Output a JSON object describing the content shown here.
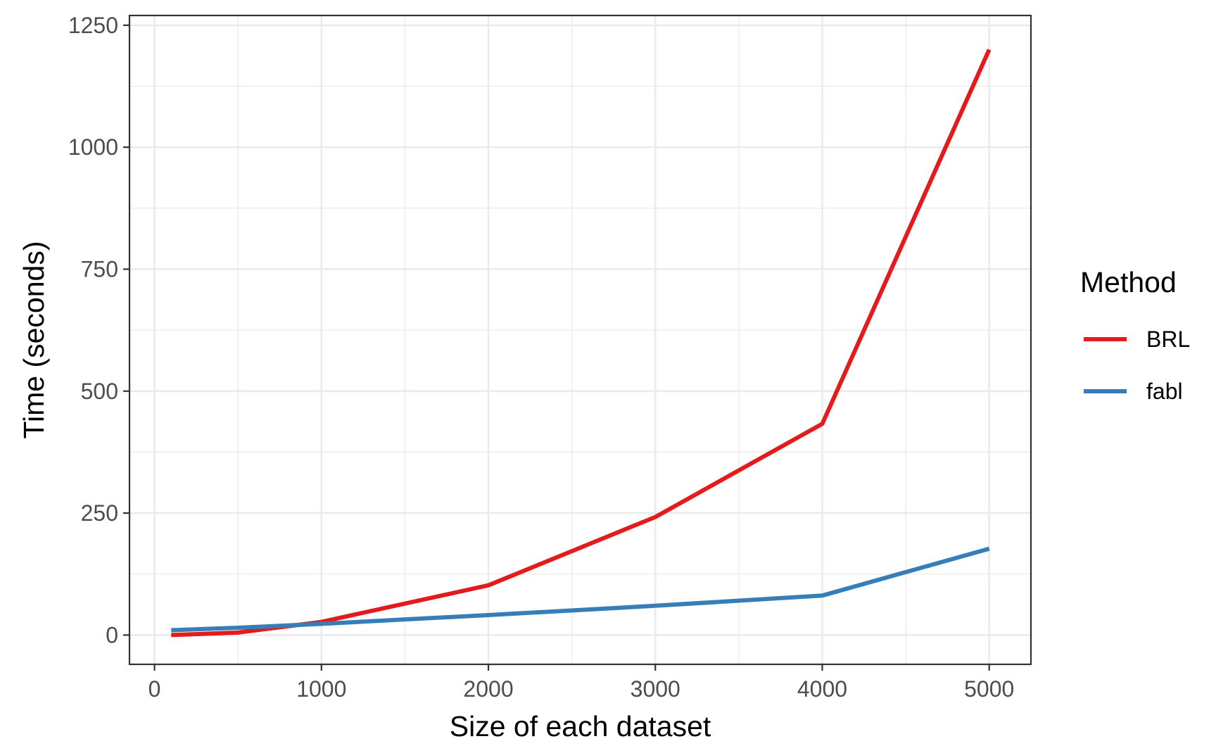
{
  "chart_data": {
    "type": "line",
    "title": "",
    "xlabel": "Size of each dataset",
    "ylabel": "Time (seconds)",
    "xlim": [
      -150,
      5250
    ],
    "ylim": [
      -60,
      1270
    ],
    "x_ticks": [
      0,
      1000,
      2000,
      3000,
      4000,
      5000
    ],
    "x_tick_labels": [
      "0",
      "1000",
      "2000",
      "3000",
      "4000",
      "5000"
    ],
    "y_ticks": [
      0,
      250,
      500,
      750,
      1000,
      1250
    ],
    "y_tick_labels": [
      "0",
      "250",
      "500",
      "750",
      "1000",
      "1250"
    ],
    "grid": true,
    "legend": {
      "title": "Method",
      "position": "right"
    },
    "series": [
      {
        "name": "BRL",
        "color": "#e41a1c",
        "x": [
          100,
          500,
          1000,
          2000,
          3000,
          4000,
          5000
        ],
        "values": [
          0,
          5,
          27,
          102,
          242,
          433,
          1200
        ]
      },
      {
        "name": "fabl",
        "color": "#377eb8",
        "x": [
          100,
          500,
          1000,
          2000,
          3000,
          4000,
          5000
        ],
        "values": [
          10,
          15,
          23,
          41,
          60,
          81,
          177
        ]
      }
    ]
  }
}
